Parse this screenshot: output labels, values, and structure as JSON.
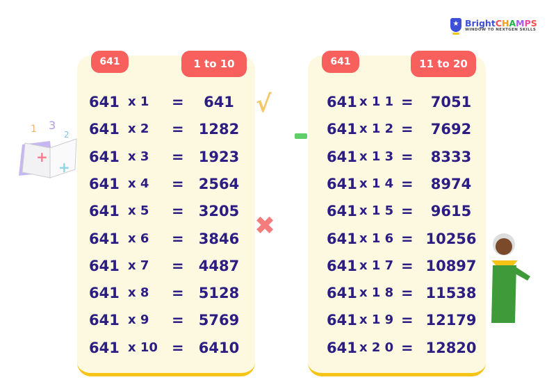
{
  "logo": {
    "brand_a": "Bright",
    "brand_b": [
      "C",
      "H",
      "A",
      "M",
      "P",
      "S"
    ],
    "tagline": "WINDOW TO NEXTGEN SKILLS"
  },
  "colors": {
    "accent": "#f7605c",
    "text": "#2b1d82",
    "card": "#fdf9e1",
    "border": "#f6c417"
  },
  "tables": [
    {
      "number": "641",
      "range": "1 to 10",
      "rows": [
        {
          "base": "641",
          "mult": "x 1",
          "eq": "=",
          "result": "641"
        },
        {
          "base": "641",
          "mult": "x 2",
          "eq": "=",
          "result": "1282"
        },
        {
          "base": "641",
          "mult": "x 3",
          "eq": "=",
          "result": "1923"
        },
        {
          "base": "641",
          "mult": "x 4",
          "eq": "=",
          "result": "2564"
        },
        {
          "base": "641",
          "mult": "x 5",
          "eq": "=",
          "result": "3205"
        },
        {
          "base": "641",
          "mult": "x 6",
          "eq": "=",
          "result": "3846"
        },
        {
          "base": "641",
          "mult": "x 7",
          "eq": "=",
          "result": "4487"
        },
        {
          "base": "641",
          "mult": "x 8",
          "eq": "=",
          "result": "5128"
        },
        {
          "base": "641",
          "mult": "x 9",
          "eq": "=",
          "result": "5769"
        },
        {
          "base": "641",
          "mult": "x 10",
          "eq": "=",
          "result": "6410"
        }
      ]
    },
    {
      "number": "641",
      "range": "11 to 20",
      "rows": [
        {
          "base": "641",
          "mult": "x 1 1",
          "eq": "=",
          "result": "7051"
        },
        {
          "base": "641",
          "mult": "x 1 2",
          "eq": "=",
          "result": "7692"
        },
        {
          "base": "641",
          "mult": "x 1 3",
          "eq": "=",
          "result": "8333"
        },
        {
          "base": "641",
          "mult": "x 1 4",
          "eq": "=",
          "result": "8974"
        },
        {
          "base": "641",
          "mult": "x 1 5",
          "eq": "=",
          "result": "9615"
        },
        {
          "base": "641",
          "mult": "x 1 6",
          "eq": "=",
          "result": "10256"
        },
        {
          "base": "641",
          "mult": "x 1 7",
          "eq": "=",
          "result": "10897"
        },
        {
          "base": "641",
          "mult": "x 1 8",
          "eq": "=",
          "result": "11538"
        },
        {
          "base": "641",
          "mult": "x 1 9",
          "eq": "=",
          "result": "12179"
        },
        {
          "base": "641",
          "mult": "x 2 0",
          "eq": "=",
          "result": "12820"
        }
      ]
    }
  ]
}
